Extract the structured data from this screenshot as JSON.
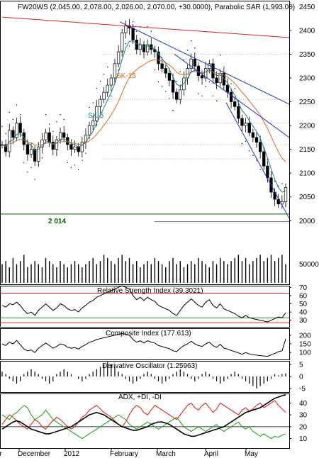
{
  "chart_data": {
    "type": "line",
    "x_labels": [
      "er",
      "December",
      "2012",
      "February",
      "March",
      "April",
      "May"
    ],
    "panels": [
      {
        "title": "FW20WS (2,045.00, 2,078.00, 2,026.00, 2,070.00, +30.0000), Parabolic SAR (1,993.00)",
        "ylim": [
          1990,
          2455
        ],
        "yticks": [
          "2450",
          "2400",
          "2350",
          "2300",
          "2250",
          "2200",
          "2150",
          "2100",
          "2050",
          "2000"
        ],
        "annotations": [
          "SK-15",
          "SK-5",
          "2 014"
        ],
        "close": [
          2160,
          2145,
          2190,
          2175,
          2205,
          2185,
          2160,
          2140,
          2150,
          2125,
          2155,
          2170,
          2185,
          2165,
          2150,
          2170,
          2185,
          2175,
          2160,
          2150,
          2155,
          2145,
          2165,
          2180,
          2200,
          2210,
          2240,
          2255,
          2270,
          2285,
          2300,
          2330,
          2355,
          2395,
          2410,
          2405,
          2380,
          2360,
          2370,
          2355,
          2370,
          2360,
          2355,
          2330,
          2320,
          2310,
          2295,
          2270,
          2255,
          2275,
          2300,
          2320,
          2340,
          2325,
          2305,
          2300,
          2320,
          2330,
          2300,
          2290,
          2310,
          2285,
          2270,
          2250,
          2240,
          2215,
          2200,
          2205,
          2185,
          2175,
          2165,
          2145,
          2115,
          2090,
          2060,
          2045,
          2035,
          2040,
          2070
        ],
        "volume": [
          0.6,
          0.7,
          0.5,
          0.8,
          0.6,
          0.7,
          0.9,
          0.5,
          0.6,
          0.7,
          0.6,
          0.5,
          0.8,
          0.7,
          0.6,
          0.5,
          0.7,
          0.6,
          0.5,
          0.6,
          0.7,
          0.6,
          0.5,
          0.6,
          0.7,
          0.8,
          0.6,
          0.7,
          0.9,
          0.8,
          0.7,
          0.6,
          0.8,
          0.9,
          0.7,
          0.8,
          0.6,
          0.7,
          0.5,
          0.6,
          0.7,
          0.6,
          0.8,
          0.7,
          0.6,
          0.5,
          0.7,
          0.8,
          0.6,
          0.7,
          0.5,
          0.6,
          0.7,
          0.6,
          0.8,
          0.7,
          0.6,
          0.5,
          0.7,
          0.6,
          0.8,
          0.7,
          0.6,
          0.7,
          0.8,
          0.9,
          0.7,
          0.8,
          0.6,
          0.7,
          0.8,
          0.9,
          0.7,
          0.8,
          0.9,
          0.7,
          0.8,
          0.9,
          0.6
        ],
        "volume_tick": "50000"
      },
      {
        "title": "Relative Strength Index (39.3021)",
        "ylim": [
          22,
          72
        ],
        "yticks": [
          "70",
          "60",
          "50",
          "40",
          "30"
        ],
        "levels": [
          63,
          33,
          27
        ],
        "values": [
          48,
          46,
          50,
          49,
          52,
          48,
          42,
          38,
          40,
          36,
          42,
          46,
          50,
          46,
          42,
          45,
          50,
          48,
          44,
          42,
          43,
          40,
          45,
          48,
          52,
          54,
          58,
          60,
          62,
          64,
          66,
          68,
          70,
          72,
          70,
          68,
          60,
          55,
          58,
          54,
          58,
          55,
          53,
          48,
          46,
          44,
          42,
          38,
          36,
          42,
          48,
          52,
          56,
          52,
          48,
          46,
          52,
          55,
          48,
          45,
          50,
          44,
          42,
          40,
          38,
          35,
          33,
          36,
          33,
          32,
          31,
          30,
          29,
          28,
          30,
          32,
          34,
          33,
          39
        ]
      },
      {
        "title": "Composite Index (177.613)",
        "ylim": [
          60,
          240
        ],
        "yticks": [
          "200",
          "150",
          "100"
        ],
        "values": [
          150,
          140,
          160,
          150,
          170,
          145,
          120,
          110,
          115,
          100,
          125,
          140,
          155,
          140,
          125,
          135,
          150,
          145,
          130,
          125,
          128,
          120,
          135,
          145,
          160,
          165,
          175,
          180,
          185,
          190,
          195,
          200,
          205,
          210,
          205,
          200,
          175,
          160,
          168,
          155,
          168,
          160,
          155,
          140,
          135,
          128,
          122,
          110,
          105,
          125,
          140,
          150,
          165,
          150,
          140,
          135,
          150,
          160,
          140,
          130,
          148,
          125,
          120,
          112,
          105,
          98,
          90,
          100,
          92,
          88,
          85,
          82,
          80,
          78,
          86,
          95,
          105,
          110,
          178
        ]
      },
      {
        "title": "Derivative Oscillator (1.25963)",
        "ylim": [
          -6.5,
          6.5
        ],
        "yticks": [
          "5",
          "0",
          "-5"
        ],
        "values": [
          2,
          1,
          -1,
          -2,
          -3,
          -2,
          1,
          2,
          3,
          2,
          1,
          -1,
          -2,
          -3,
          -2,
          1,
          2,
          3,
          2,
          1,
          0,
          -1,
          -2,
          -1,
          1,
          2,
          3,
          4,
          5,
          6,
          5,
          4,
          2,
          1,
          -1,
          -2,
          -3,
          -2,
          -1,
          1,
          2,
          1,
          -1,
          -2,
          -3,
          -2,
          -1,
          1,
          2,
          3,
          2,
          1,
          -1,
          -2,
          -1,
          1,
          2,
          1,
          -1,
          -2,
          -3,
          -2,
          -1,
          1,
          2,
          1,
          -1,
          -2,
          -3,
          -4,
          -5,
          -4,
          -3,
          -2,
          -1,
          1,
          0.5,
          1,
          1.3
        ]
      },
      {
        "title": "ADX, +DI, -DI",
        "ylim": [
          2,
          48
        ],
        "yticks": [
          "40",
          "30",
          "20",
          "10"
        ],
        "level": 20,
        "adx": [
          18,
          20,
          22,
          24,
          25,
          24,
          22,
          20,
          18,
          17,
          16,
          15,
          14,
          14,
          15,
          16,
          17,
          18,
          19,
          20,
          22,
          24,
          26,
          28,
          30,
          31,
          32,
          31,
          30,
          28,
          26,
          24,
          22,
          20,
          19,
          18,
          17,
          17,
          18,
          19,
          20,
          22,
          23,
          24,
          24,
          23,
          22,
          20,
          18,
          16,
          14,
          13,
          12,
          12,
          13,
          14,
          15,
          16,
          17,
          18,
          19,
          20,
          22,
          24,
          26,
          28,
          30,
          32,
          33,
          34,
          35,
          36,
          38,
          40,
          42,
          44,
          45,
          46,
          47
        ],
        "plus_di": [
          22,
          26,
          30,
          28,
          25,
          22,
          20,
          18,
          22,
          26,
          24,
          20,
          18,
          22,
          25,
          28,
          26,
          23,
          20,
          18,
          20,
          24,
          28,
          30,
          34,
          36,
          38,
          35,
          32,
          30,
          28,
          25,
          22,
          20,
          24,
          30,
          35,
          38,
          36,
          32,
          30,
          34,
          38,
          36,
          34,
          32,
          30,
          28,
          26,
          30,
          34,
          38,
          40,
          36,
          34,
          38,
          40,
          36,
          32,
          35,
          40,
          38,
          36,
          34,
          32,
          30,
          34,
          36,
          33,
          35,
          38,
          40,
          36,
          38,
          40,
          42,
          38,
          35,
          32
        ],
        "minus_di": [
          30,
          28,
          26,
          30,
          32,
          35,
          38,
          36,
          30,
          26,
          28,
          30,
          34,
          30,
          26,
          24,
          22,
          20,
          18,
          16,
          14,
          12,
          10,
          12,
          14,
          16,
          18,
          20,
          22,
          24,
          26,
          28,
          30,
          28,
          26,
          22,
          20,
          18,
          20,
          22,
          24,
          22,
          20,
          18,
          20,
          22,
          24,
          26,
          28,
          24,
          20,
          18,
          16,
          18,
          20,
          18,
          16,
          18,
          20,
          22,
          18,
          16,
          18,
          20,
          22,
          24,
          20,
          18,
          20,
          16,
          14,
          12,
          14,
          12,
          10,
          12,
          11,
          13,
          14
        ]
      }
    ]
  }
}
